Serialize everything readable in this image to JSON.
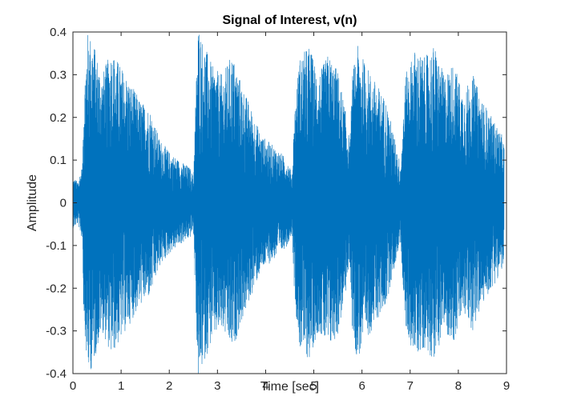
{
  "chart_data": {
    "type": "line",
    "title": "Signal of Interest, v(n)",
    "xlabel": "Time [sec]",
    "ylabel": "Amplitude",
    "xlim": [
      0,
      9
    ],
    "ylim": [
      -0.4,
      0.4
    ],
    "xticks": [
      0,
      1,
      2,
      3,
      4,
      5,
      6,
      7,
      8,
      9
    ],
    "xtick_labels": [
      "0",
      "1",
      "2",
      "3",
      "4",
      "5",
      "6",
      "7",
      "8",
      "9"
    ],
    "yticks": [
      -0.4,
      -0.3,
      -0.2,
      -0.1,
      0,
      0.1,
      0.2,
      0.3,
      0.4
    ],
    "ytick_labels": [
      "-0.4",
      "-0.3",
      "-0.2",
      "-0.1",
      "0",
      "0.1",
      "0.2",
      "0.3",
      "0.4"
    ],
    "grid": false,
    "line_color": "#0072BD",
    "series": [
      {
        "name": "",
        "envelope": {
          "t": [
            0.0,
            0.1,
            0.2,
            0.22,
            0.3,
            0.4,
            0.6,
            0.8,
            1.0,
            1.2,
            1.4,
            1.6,
            1.8,
            2.0,
            2.2,
            2.35,
            2.45,
            2.5,
            2.55,
            2.6,
            2.7,
            2.9,
            3.1,
            3.3,
            3.5,
            3.7,
            3.9,
            4.1,
            4.3,
            4.45,
            4.55,
            4.6,
            4.7,
            4.9,
            5.1,
            5.3,
            5.5,
            5.65,
            5.75,
            5.8,
            5.9,
            6.1,
            6.3,
            6.5,
            6.7,
            6.8,
            6.9,
            7.1,
            7.3,
            7.5,
            7.7,
            7.9,
            8.1,
            8.3,
            8.5,
            8.7,
            8.9,
            8.95
          ],
          "amp": [
            0.06,
            0.05,
            0.09,
            0.25,
            0.4,
            0.39,
            0.3,
            0.36,
            0.32,
            0.28,
            0.24,
            0.22,
            0.15,
            0.12,
            0.1,
            0.09,
            0.08,
            0.06,
            0.26,
            0.42,
            0.38,
            0.32,
            0.3,
            0.35,
            0.28,
            0.22,
            0.16,
            0.14,
            0.12,
            0.1,
            0.07,
            0.22,
            0.34,
            0.37,
            0.3,
            0.35,
            0.31,
            0.22,
            0.14,
            0.3,
            0.37,
            0.32,
            0.28,
            0.24,
            0.14,
            0.09,
            0.3,
            0.36,
            0.34,
            0.37,
            0.3,
            0.33,
            0.26,
            0.3,
            0.24,
            0.2,
            0.16,
            0.14
          ]
        }
      }
    ]
  }
}
